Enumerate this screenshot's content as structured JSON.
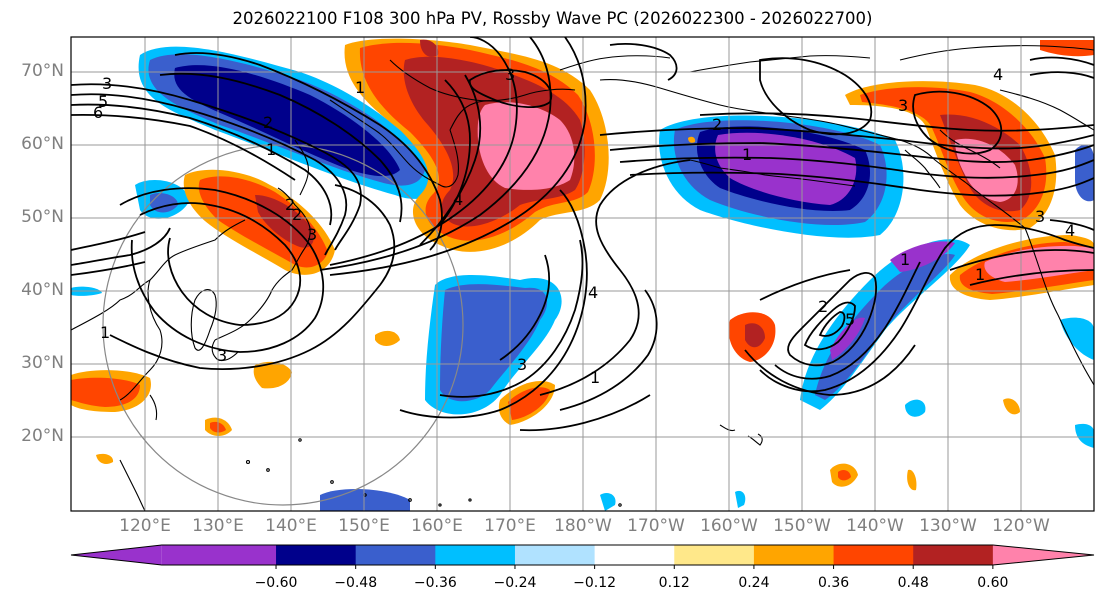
{
  "title": "2026022100 F108 300 hPa PV, Rossby Wave PC (2026022300 - 2026022700)",
  "lat_labels": [
    "70°N",
    "60°N",
    "50°N",
    "40°N",
    "30°N",
    "20°N"
  ],
  "lon_labels": [
    "120°E",
    "130°E",
    "140°E",
    "150°E",
    "160°E",
    "170°E",
    "180°W",
    "170°W",
    "160°W",
    "150°W",
    "140°W",
    "130°W",
    "120°W"
  ],
  "colorbar": {
    "ticks": [
      "−0.60",
      "−0.48",
      "−0.36",
      "−0.24",
      "−0.12",
      "0.12",
      "0.24",
      "0.36",
      "0.48",
      "0.60"
    ],
    "colors": [
      "#9932cc",
      "#00008b",
      "#3a5fcd",
      "#00bfff",
      "#b0e2ff",
      "#ffffff",
      "#ffe88a",
      "#ffa500",
      "#ff4500",
      "#b22222",
      "#ff82ab"
    ]
  },
  "contour_labels": [
    "3",
    "5",
    "6",
    "1",
    "2",
    "3",
    "1",
    "4",
    "2",
    "3",
    "1",
    "1",
    "4",
    "3",
    "5",
    "2",
    "4",
    "3",
    "2",
    "1",
    "3",
    "4",
    "3",
    "2",
    "1",
    "1"
  ]
}
